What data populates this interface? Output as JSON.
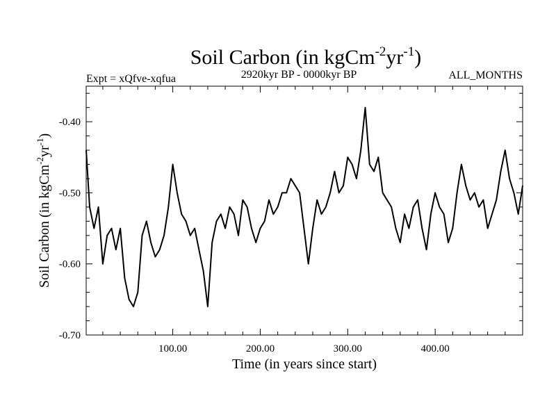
{
  "chart_data": {
    "type": "line",
    "title": "Soil Carbon (in kgCm",
    "title_sup1": "-2",
    "title_mid": "yr",
    "title_sup2": "-1",
    "title_end": ")",
    "experiment": "Expt = xQfve-xqfua",
    "period": "2920kyr BP - 0000kyr BP",
    "season": "ALL_MONTHS",
    "xlabel": "Time (in years since start)",
    "ylabel": "Soil Carbon (in kgCm",
    "ylabel_sup1": "-2",
    "ylabel_mid": "yr",
    "ylabel_sup2": "-1",
    "ylabel_end": ")",
    "xlim": [
      1,
      500
    ],
    "ylim": [
      -0.7,
      -0.35
    ],
    "x_ticks": [
      {
        "value": 100,
        "label": "100.00"
      },
      {
        "value": 200,
        "label": "200.00"
      },
      {
        "value": 300,
        "label": "300.00"
      },
      {
        "value": 400,
        "label": "400.00"
      }
    ],
    "y_ticks": [
      {
        "value": -0.7,
        "label": "-0.70"
      },
      {
        "value": -0.6,
        "label": "-0.60"
      },
      {
        "value": -0.5,
        "label": "-0.50"
      },
      {
        "value": -0.4,
        "label": "-0.40"
      }
    ],
    "series": [
      {
        "name": "Soil Carbon",
        "color": "#000000",
        "x": [
          1,
          5,
          10,
          15,
          20,
          25,
          30,
          35,
          40,
          45,
          50,
          55,
          60,
          65,
          70,
          75,
          80,
          85,
          90,
          95,
          100,
          105,
          110,
          115,
          120,
          125,
          130,
          135,
          140,
          145,
          150,
          155,
          160,
          165,
          170,
          175,
          180,
          185,
          190,
          195,
          200,
          205,
          210,
          215,
          220,
          225,
          230,
          235,
          240,
          245,
          250,
          255,
          260,
          265,
          270,
          275,
          280,
          285,
          290,
          295,
          300,
          305,
          310,
          315,
          320,
          325,
          330,
          335,
          340,
          345,
          350,
          355,
          360,
          365,
          370,
          375,
          380,
          385,
          390,
          395,
          400,
          405,
          410,
          415,
          420,
          425,
          430,
          435,
          440,
          445,
          450,
          455,
          460,
          465,
          470,
          475,
          480,
          485,
          490,
          495,
          500
        ],
        "values": [
          -0.44,
          -0.52,
          -0.55,
          -0.52,
          -0.6,
          -0.56,
          -0.55,
          -0.58,
          -0.55,
          -0.62,
          -0.65,
          -0.66,
          -0.64,
          -0.56,
          -0.54,
          -0.57,
          -0.59,
          -0.58,
          -0.56,
          -0.52,
          -0.46,
          -0.5,
          -0.53,
          -0.54,
          -0.56,
          -0.55,
          -0.58,
          -0.61,
          -0.66,
          -0.57,
          -0.54,
          -0.53,
          -0.55,
          -0.52,
          -0.53,
          -0.56,
          -0.51,
          -0.52,
          -0.55,
          -0.57,
          -0.55,
          -0.54,
          -0.51,
          -0.53,
          -0.52,
          -0.5,
          -0.5,
          -0.48,
          -0.49,
          -0.5,
          -0.55,
          -0.6,
          -0.55,
          -0.51,
          -0.53,
          -0.52,
          -0.5,
          -0.47,
          -0.5,
          -0.49,
          -0.45,
          -0.46,
          -0.48,
          -0.44,
          -0.38,
          -0.46,
          -0.47,
          -0.45,
          -0.5,
          -0.51,
          -0.52,
          -0.55,
          -0.57,
          -0.53,
          -0.55,
          -0.52,
          -0.51,
          -0.55,
          -0.58,
          -0.53,
          -0.5,
          -0.52,
          -0.53,
          -0.57,
          -0.55,
          -0.5,
          -0.46,
          -0.49,
          -0.51,
          -0.5,
          -0.52,
          -0.51,
          -0.55,
          -0.53,
          -0.51,
          -0.47,
          -0.44,
          -0.48,
          -0.5,
          -0.53,
          -0.49
        ]
      }
    ]
  }
}
